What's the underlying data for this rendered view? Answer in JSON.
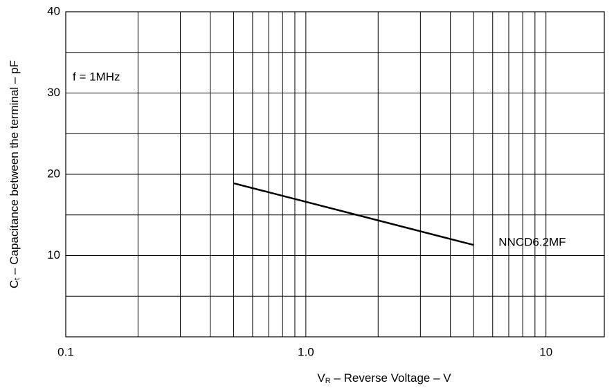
{
  "chart_data": {
    "type": "line",
    "xscale": "log",
    "xlim": [
      0.1,
      17.5
    ],
    "ylim": [
      0,
      40
    ],
    "xticks": [
      0.1,
      {
        "value": 1,
        "label": "1.0"
      },
      10
    ],
    "yticks": [
      10,
      20,
      30,
      40
    ],
    "xgrid": [
      0.2,
      0.3,
      0.4,
      0.5,
      0.6,
      0.7,
      0.8,
      0.9,
      1,
      2,
      3,
      4,
      5,
      6,
      7,
      8,
      9,
      10
    ],
    "ygrid": [
      5,
      10,
      15,
      20,
      25,
      30,
      35
    ],
    "xlabel": {
      "symbol": "V",
      "sub": "R",
      "text": " – Reverse Voltage – V"
    },
    "ylabel": {
      "symbol": "C",
      "sub": "t",
      "text": " – Capacitance between the terminal – pF"
    },
    "annotation": "f = 1MHz",
    "series": [
      {
        "name": "NNCD6.2MF",
        "color": "#000000",
        "x": [
          0.5,
          5
        ],
        "values": [
          18.9,
          11.3
        ]
      }
    ]
  }
}
